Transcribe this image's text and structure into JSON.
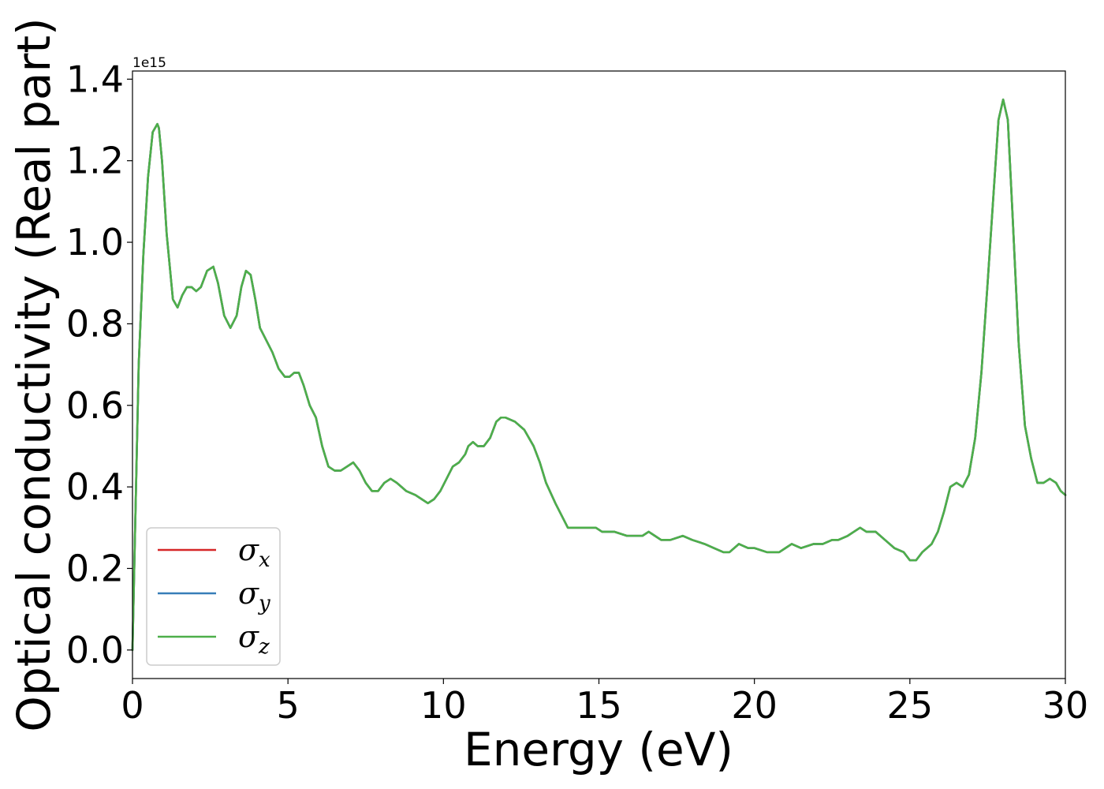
{
  "chart_data": {
    "type": "line",
    "title": "",
    "xlabel": "Energy (eV)",
    "ylabel": "Optical conductivity (Real part)",
    "y_exponent_label": "1e15",
    "y_scale_factor": 1000000000000000.0,
    "xlim": [
      0,
      30
    ],
    "ylim": [
      -0.07,
      1.42
    ],
    "xticks": [
      0,
      5,
      10,
      15,
      20,
      25,
      30
    ],
    "xtick_labels": [
      "0",
      "5",
      "10",
      "15",
      "20",
      "25",
      "30"
    ],
    "yticks": [
      0.0,
      0.2,
      0.4,
      0.6,
      0.8,
      1.0,
      1.2,
      1.4
    ],
    "ytick_labels": [
      "0.0",
      "0.2",
      "0.4",
      "0.6",
      "0.8",
      "1.0",
      "1.2",
      "1.4"
    ],
    "grid": false,
    "legend_position": "lower-left",
    "x": [
      0.0,
      0.1,
      0.2,
      0.35,
      0.5,
      0.65,
      0.8,
      0.85,
      0.95,
      1.1,
      1.3,
      1.45,
      1.6,
      1.75,
      1.9,
      2.05,
      2.2,
      2.4,
      2.6,
      2.75,
      2.95,
      3.15,
      3.35,
      3.5,
      3.65,
      3.8,
      3.95,
      4.1,
      4.3,
      4.5,
      4.7,
      4.9,
      5.05,
      5.2,
      5.35,
      5.5,
      5.7,
      5.9,
      6.1,
      6.3,
      6.5,
      6.7,
      6.9,
      7.1,
      7.3,
      7.5,
      7.7,
      7.9,
      8.1,
      8.3,
      8.5,
      8.8,
      9.1,
      9.3,
      9.5,
      9.7,
      9.9,
      10.1,
      10.3,
      10.5,
      10.7,
      10.8,
      10.95,
      11.1,
      11.3,
      11.5,
      11.7,
      11.85,
      12.0,
      12.3,
      12.6,
      12.9,
      13.1,
      13.3,
      13.6,
      13.8,
      14.0,
      14.2,
      14.5,
      14.7,
      14.9,
      15.1,
      15.5,
      15.9,
      16.2,
      16.4,
      16.6,
      16.8,
      17.0,
      17.3,
      17.7,
      18.0,
      18.4,
      18.7,
      19.0,
      19.2,
      19.5,
      19.8,
      20.0,
      20.4,
      20.8,
      21.0,
      21.2,
      21.5,
      21.9,
      22.2,
      22.5,
      22.7,
      23.0,
      23.2,
      23.4,
      23.6,
      23.9,
      24.2,
      24.5,
      24.8,
      25.0,
      25.2,
      25.4,
      25.7,
      25.9,
      26.1,
      26.3,
      26.5,
      26.7,
      26.9,
      27.1,
      27.3,
      27.5,
      27.7,
      27.85,
      28.0,
      28.15,
      28.3,
      28.5,
      28.7,
      28.9,
      29.1,
      29.3,
      29.5,
      29.7,
      29.85,
      30.0
    ],
    "series": [
      {
        "name": "σx",
        "symbol": "σ",
        "subscript": "x",
        "color": "#d62728",
        "values": [
          0.0,
          0.35,
          0.7,
          0.97,
          1.16,
          1.27,
          1.29,
          1.28,
          1.2,
          1.02,
          0.86,
          0.84,
          0.87,
          0.89,
          0.89,
          0.88,
          0.89,
          0.93,
          0.94,
          0.9,
          0.82,
          0.79,
          0.82,
          0.89,
          0.93,
          0.92,
          0.86,
          0.79,
          0.76,
          0.73,
          0.69,
          0.67,
          0.67,
          0.68,
          0.68,
          0.65,
          0.6,
          0.57,
          0.5,
          0.45,
          0.44,
          0.44,
          0.45,
          0.46,
          0.44,
          0.41,
          0.39,
          0.39,
          0.41,
          0.42,
          0.41,
          0.39,
          0.38,
          0.37,
          0.36,
          0.37,
          0.39,
          0.42,
          0.45,
          0.46,
          0.48,
          0.5,
          0.51,
          0.5,
          0.5,
          0.52,
          0.56,
          0.57,
          0.57,
          0.56,
          0.54,
          0.5,
          0.46,
          0.41,
          0.36,
          0.33,
          0.3,
          0.3,
          0.3,
          0.3,
          0.3,
          0.29,
          0.29,
          0.28,
          0.28,
          0.28,
          0.29,
          0.28,
          0.27,
          0.27,
          0.28,
          0.27,
          0.26,
          0.25,
          0.24,
          0.24,
          0.26,
          0.25,
          0.25,
          0.24,
          0.24,
          0.25,
          0.26,
          0.25,
          0.26,
          0.26,
          0.27,
          0.27,
          0.28,
          0.29,
          0.3,
          0.29,
          0.29,
          0.27,
          0.25,
          0.24,
          0.22,
          0.22,
          0.24,
          0.26,
          0.29,
          0.34,
          0.4,
          0.41,
          0.4,
          0.43,
          0.52,
          0.68,
          0.9,
          1.13,
          1.3,
          1.35,
          1.3,
          1.07,
          0.75,
          0.55,
          0.47,
          0.41,
          0.41,
          0.42,
          0.41,
          0.39,
          0.38
        ]
      },
      {
        "name": "σy",
        "symbol": "σ",
        "subscript": "y",
        "color": "#377eb8",
        "values": [
          0.0,
          0.35,
          0.7,
          0.97,
          1.16,
          1.27,
          1.29,
          1.28,
          1.2,
          1.02,
          0.86,
          0.84,
          0.87,
          0.89,
          0.89,
          0.88,
          0.89,
          0.93,
          0.94,
          0.9,
          0.82,
          0.79,
          0.82,
          0.89,
          0.93,
          0.92,
          0.86,
          0.79,
          0.76,
          0.73,
          0.69,
          0.67,
          0.67,
          0.68,
          0.68,
          0.65,
          0.6,
          0.57,
          0.5,
          0.45,
          0.44,
          0.44,
          0.45,
          0.46,
          0.44,
          0.41,
          0.39,
          0.39,
          0.41,
          0.42,
          0.41,
          0.39,
          0.38,
          0.37,
          0.36,
          0.37,
          0.39,
          0.42,
          0.45,
          0.46,
          0.48,
          0.5,
          0.51,
          0.5,
          0.5,
          0.52,
          0.56,
          0.57,
          0.57,
          0.56,
          0.54,
          0.5,
          0.46,
          0.41,
          0.36,
          0.33,
          0.3,
          0.3,
          0.3,
          0.3,
          0.3,
          0.29,
          0.29,
          0.28,
          0.28,
          0.28,
          0.29,
          0.28,
          0.27,
          0.27,
          0.28,
          0.27,
          0.26,
          0.25,
          0.24,
          0.24,
          0.26,
          0.25,
          0.25,
          0.24,
          0.24,
          0.25,
          0.26,
          0.25,
          0.26,
          0.26,
          0.27,
          0.27,
          0.28,
          0.29,
          0.3,
          0.29,
          0.29,
          0.27,
          0.25,
          0.24,
          0.22,
          0.22,
          0.24,
          0.26,
          0.29,
          0.34,
          0.4,
          0.41,
          0.4,
          0.43,
          0.52,
          0.68,
          0.9,
          1.13,
          1.3,
          1.35,
          1.3,
          1.07,
          0.75,
          0.55,
          0.47,
          0.41,
          0.41,
          0.42,
          0.41,
          0.39,
          0.38
        ]
      },
      {
        "name": "σz",
        "symbol": "σ",
        "subscript": "z",
        "color": "#4daf4a",
        "values": [
          0.0,
          0.35,
          0.7,
          0.97,
          1.16,
          1.27,
          1.29,
          1.28,
          1.2,
          1.02,
          0.86,
          0.84,
          0.87,
          0.89,
          0.89,
          0.88,
          0.89,
          0.93,
          0.94,
          0.9,
          0.82,
          0.79,
          0.82,
          0.89,
          0.93,
          0.92,
          0.86,
          0.79,
          0.76,
          0.73,
          0.69,
          0.67,
          0.67,
          0.68,
          0.68,
          0.65,
          0.6,
          0.57,
          0.5,
          0.45,
          0.44,
          0.44,
          0.45,
          0.46,
          0.44,
          0.41,
          0.39,
          0.39,
          0.41,
          0.42,
          0.41,
          0.39,
          0.38,
          0.37,
          0.36,
          0.37,
          0.39,
          0.42,
          0.45,
          0.46,
          0.48,
          0.5,
          0.51,
          0.5,
          0.5,
          0.52,
          0.56,
          0.57,
          0.57,
          0.56,
          0.54,
          0.5,
          0.46,
          0.41,
          0.36,
          0.33,
          0.3,
          0.3,
          0.3,
          0.3,
          0.3,
          0.29,
          0.29,
          0.28,
          0.28,
          0.28,
          0.29,
          0.28,
          0.27,
          0.27,
          0.28,
          0.27,
          0.26,
          0.25,
          0.24,
          0.24,
          0.26,
          0.25,
          0.25,
          0.24,
          0.24,
          0.25,
          0.26,
          0.25,
          0.26,
          0.26,
          0.27,
          0.27,
          0.28,
          0.29,
          0.3,
          0.29,
          0.29,
          0.27,
          0.25,
          0.24,
          0.22,
          0.22,
          0.24,
          0.26,
          0.29,
          0.34,
          0.4,
          0.41,
          0.4,
          0.43,
          0.52,
          0.68,
          0.9,
          1.13,
          1.3,
          1.35,
          1.3,
          1.07,
          0.75,
          0.55,
          0.47,
          0.41,
          0.41,
          0.42,
          0.41,
          0.39,
          0.38
        ]
      }
    ]
  }
}
